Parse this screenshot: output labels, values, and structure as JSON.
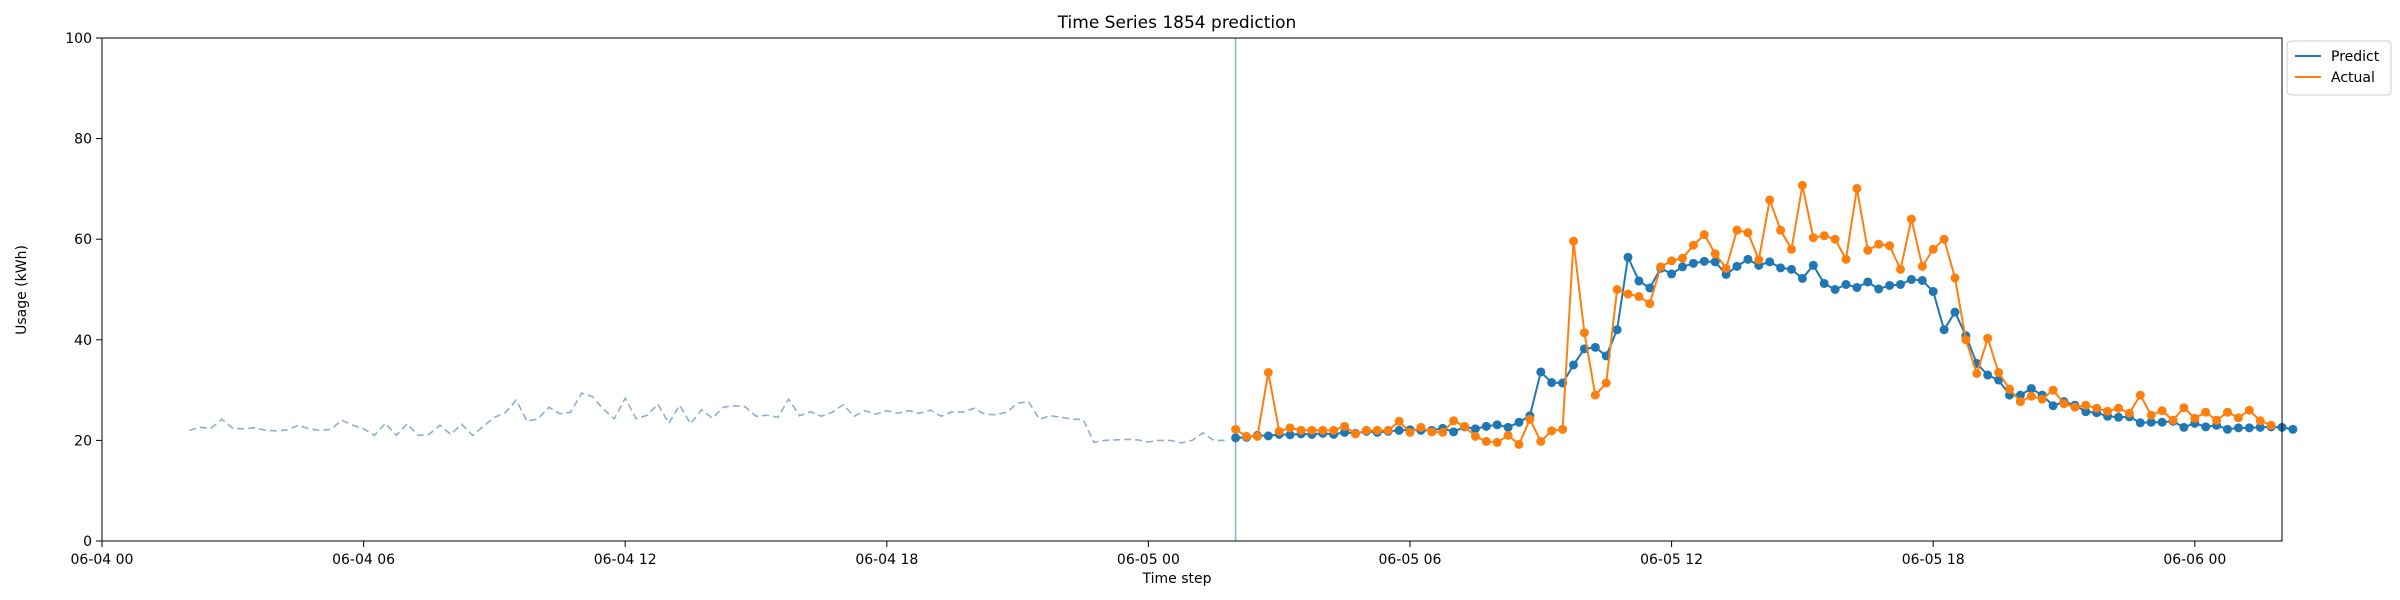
{
  "chart_data": {
    "type": "line",
    "title": "Time Series 1854 prediction",
    "xlabel": "Time step",
    "ylabel": "Usage (kWh)",
    "ylim": [
      0,
      100
    ],
    "xlim": [
      "06-04 00",
      "06-06 02"
    ],
    "x_tick_labels": [
      "06-04 00",
      "06-04 06",
      "06-04 12",
      "06-04 18",
      "06-05 00",
      "06-05 06",
      "06-05 12",
      "06-05 18",
      "06-06 00"
    ],
    "y_tick_labels": [
      "0",
      "20",
      "40",
      "60",
      "80",
      "100"
    ],
    "grid": false,
    "legend_position": "outside-top-right",
    "forecast_start": "06-05 02:00",
    "series": [
      {
        "name": "",
        "role": "history",
        "style": "dashed",
        "color": "#8faed4",
        "start": "06-04 02:00",
        "step_minutes": 15,
        "values": [
          22.0,
          22.6,
          22.4,
          24.2,
          22.4,
          22.3,
          22.5,
          22.0,
          21.9,
          22.1,
          23.0,
          22.3,
          22.0,
          22.2,
          24.0,
          23.0,
          22.3,
          21.0,
          23.4,
          21.0,
          23.3,
          21.0,
          21.2,
          23.0,
          21.2,
          23.2,
          21.0,
          22.8,
          24.6,
          25.5,
          28.0,
          23.8,
          24.3,
          26.6,
          25.3,
          25.6,
          29.4,
          28.7,
          26.2,
          24.3,
          28.4,
          24.3,
          25.0,
          27.2,
          23.4,
          27.0,
          23.3,
          26.1,
          24.4,
          26.6,
          26.9,
          26.7,
          24.8,
          25.0,
          24.6,
          28.2,
          24.9,
          25.7,
          24.8,
          25.6,
          27.1,
          24.8,
          25.9,
          25.2,
          25.9,
          25.4,
          25.9,
          25.4,
          26.0,
          24.8,
          25.7,
          25.6,
          26.4,
          25.2,
          25.1,
          25.6,
          27.4,
          27.7,
          24.2,
          24.9,
          24.6,
          24.2,
          24.2,
          19.6,
          20.0,
          20.1,
          20.2,
          20.1,
          19.7,
          20.0,
          20.0,
          19.5,
          20.0,
          21.5,
          20.0,
          20.0
        ]
      },
      {
        "name": "Predict",
        "role": "forecast",
        "style": "solid-markers",
        "color": "#1f77b4",
        "start": "06-05 02:00",
        "step_minutes": 15,
        "values": [
          20.5,
          20.6,
          21.0,
          20.9,
          21.2,
          21.1,
          21.3,
          21.2,
          21.4,
          21.2,
          21.6,
          21.4,
          21.8,
          21.6,
          21.8,
          22.0,
          22.1,
          22.0,
          22.0,
          22.4,
          21.7,
          22.7,
          22.3,
          22.8,
          23.1,
          22.6,
          23.6,
          24.9,
          33.6,
          31.5,
          31.4,
          35.0,
          38.2,
          38.5,
          36.8,
          42.0,
          56.4,
          51.7,
          50.3,
          54.2,
          53.1,
          54.5,
          55.2,
          55.6,
          55.5,
          53.0,
          54.6,
          56.0,
          54.8,
          55.5,
          54.3,
          54.0,
          52.2,
          54.8,
          51.2,
          50.0,
          51.0,
          50.4,
          51.5,
          50.1,
          50.8,
          51.0,
          52.0,
          51.8,
          49.6,
          42.0,
          45.5,
          40.8,
          35.3,
          33.0,
          32.0,
          29.0,
          29.0,
          30.3,
          29.0,
          26.9,
          27.7,
          27.0,
          25.7,
          25.5,
          24.8,
          24.6,
          24.7,
          23.5,
          23.6,
          23.6,
          23.8,
          22.6,
          23.4,
          22.7,
          23.0,
          22.2,
          22.5,
          22.5,
          22.6,
          22.7,
          22.6,
          22.2
        ]
      },
      {
        "name": "Actual",
        "role": "ground-truth",
        "style": "solid-markers",
        "color": "#ff7f0e",
        "start": "06-05 02:00",
        "step_minutes": 15,
        "values": [
          22.2,
          20.8,
          20.8,
          33.5,
          21.8,
          22.5,
          22.0,
          22.0,
          22.0,
          22.0,
          22.8,
          21.3,
          22.0,
          22.0,
          22.0,
          23.8,
          21.6,
          22.6,
          21.7,
          21.6,
          23.9,
          22.8,
          20.8,
          19.8,
          19.6,
          21.0,
          19.2,
          24.2,
          19.8,
          21.9,
          22.2,
          59.6,
          41.4,
          29.0,
          31.4,
          50.0,
          49.1,
          48.6,
          47.2,
          54.5,
          55.7,
          56.2,
          58.8,
          60.9,
          57.1,
          54.2,
          61.8,
          61.3,
          55.9,
          67.8,
          61.8,
          58.0,
          70.7,
          60.3,
          60.7,
          60.0,
          56.0,
          70.1,
          57.8,
          59.0,
          58.7,
          54.0,
          64.0,
          54.6,
          58.0,
          60.0,
          52.3,
          40.0,
          33.3,
          40.3,
          33.5,
          30.2,
          27.7,
          28.8,
          28.2,
          30.0,
          27.3,
          26.6,
          27.0,
          26.4,
          25.8,
          26.4,
          25.4,
          29.0,
          25.0,
          25.9,
          24.0,
          26.5,
          24.4,
          25.6,
          24.0,
          25.6,
          24.5,
          26.0,
          23.9,
          23.0
        ]
      }
    ],
    "vertical_marker_color": "#8faed4"
  }
}
